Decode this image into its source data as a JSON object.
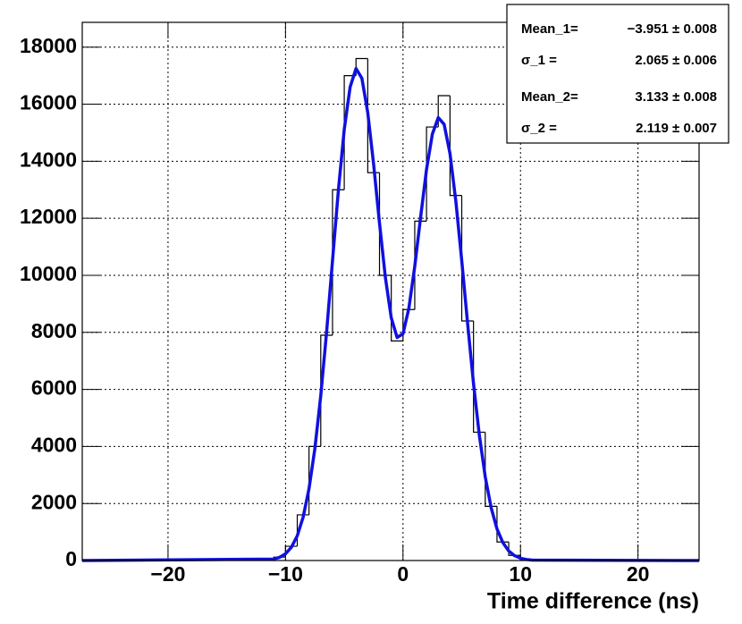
{
  "chart_data": {
    "type": "histogram",
    "x_label": "Time difference (ns)",
    "xlim": [
      -27.3,
      25.2
    ],
    "ylim": [
      0,
      18870
    ],
    "xticks": [
      {
        "value": -20,
        "label": "−20"
      },
      {
        "value": -10,
        "label": "−10"
      },
      0,
      10,
      20
    ],
    "yticks": [
      0,
      2000,
      4000,
      6000,
      8000,
      10000,
      12000,
      14000,
      16000,
      18000
    ],
    "grid": true,
    "bins": [
      -12,
      -11,
      -10,
      -9,
      -8,
      -7,
      -6,
      -5,
      -4,
      -3,
      -2,
      -1,
      0,
      1,
      2,
      3,
      4,
      5,
      6,
      7,
      8,
      9,
      10,
      11
    ],
    "values": [
      20,
      120,
      500,
      1600,
      4000,
      7900,
      13000,
      17000,
      17600,
      13600,
      10000,
      7700,
      8800,
      11900,
      15200,
      16300,
      12800,
      8400,
      4500,
      1900,
      650,
      180,
      40
    ],
    "color": "#000000",
    "fit": {
      "color": "#1010e0",
      "x": [
        -27.3,
        -11,
        -10.5,
        -10,
        -9.5,
        -9,
        -8.5,
        -8,
        -7.5,
        -7,
        -6.5,
        -6,
        -5.5,
        -5,
        -4.5,
        -4,
        -3.5,
        -3,
        -2.5,
        -2,
        -1.5,
        -1,
        -0.5,
        0,
        0.5,
        1,
        1.5,
        2,
        2.5,
        3,
        3.5,
        4,
        4.5,
        5,
        5.5,
        6,
        6.5,
        7,
        7.5,
        8,
        8.5,
        9,
        9.5,
        10,
        10.5,
        11,
        25.2
      ],
      "values": [
        0,
        51,
        112,
        236,
        465,
        866,
        1520,
        2517,
        3927,
        5783,
        8029,
        10514,
        12983,
        15119,
        16603,
        17250,
        16910,
        15705,
        13891,
        11832,
        9924,
        8510,
        7820,
        7950,
        8847,
        10311,
        12045,
        13705,
        14955,
        15529,
        15294,
        14266,
        12588,
        10514,
        8305,
        6206,
        4387,
        2933,
        1854,
        1108,
        627,
        335,
        170,
        81,
        37,
        16,
        0
      ]
    },
    "stats": [
      {
        "name": "Mean_1=",
        "value": "−3.951 ± 0.008"
      },
      {
        "name": "σ_1      =",
        "value": "2.065 ± 0.006"
      },
      {
        "name": "Mean_2=",
        "value": "3.133 ± 0.008"
      },
      {
        "name": "σ_2      =",
        "value": "2.119 ± 0.007"
      }
    ]
  }
}
